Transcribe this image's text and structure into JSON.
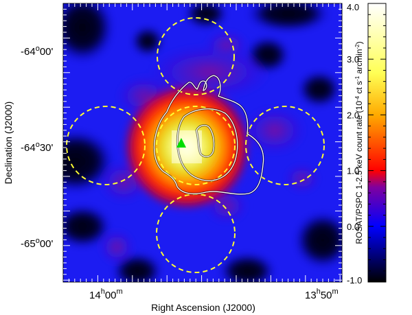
{
  "figure": {
    "x_axis": {
      "title": "Right Ascension (J2000)",
      "ticks": [
        {
          "hours": "14",
          "h": "h",
          "minutes": "00",
          "m": "m"
        },
        {
          "hours": "13",
          "h": "h",
          "minutes": "50",
          "m": "m"
        }
      ]
    },
    "y_axis": {
      "title": "Declination (J2000)",
      "ticks": [
        {
          "deg": "-64",
          "o": "o",
          "arcmin": "00'"
        },
        {
          "deg": "-64",
          "o": "o",
          "arcmin": "30'"
        },
        {
          "deg": "-65",
          "o": "o",
          "arcmin": "00'"
        }
      ]
    },
    "colorbar": {
      "label_pre": "ROSAT/PSPC 1-2.5 keV count rate (10",
      "label_exp1": "-4",
      "label_mid": " ct s",
      "label_exp2": "-1",
      "label_mid2": " arcmin",
      "label_exp3": "-2",
      "label_post": ")",
      "tick_labels": [
        "4.0",
        "3.0",
        "2.0",
        "1.0",
        "0.0",
        "-1.0"
      ],
      "tick_values": [
        4.0,
        3.0,
        2.0,
        1.0,
        0.0,
        -1.0
      ],
      "range": [
        -1.0,
        4.0
      ],
      "colormap": [
        "#000000",
        "#0000ff",
        "#7f009f",
        "#ff0000",
        "#ffaa00",
        "#ffff66",
        "#ffffff"
      ]
    },
    "overlays": {
      "circle_color": "#ffff33",
      "contour_color": "#ffffff",
      "marker_color": "#00dd00",
      "marker_shape": "triangle"
    }
  }
}
